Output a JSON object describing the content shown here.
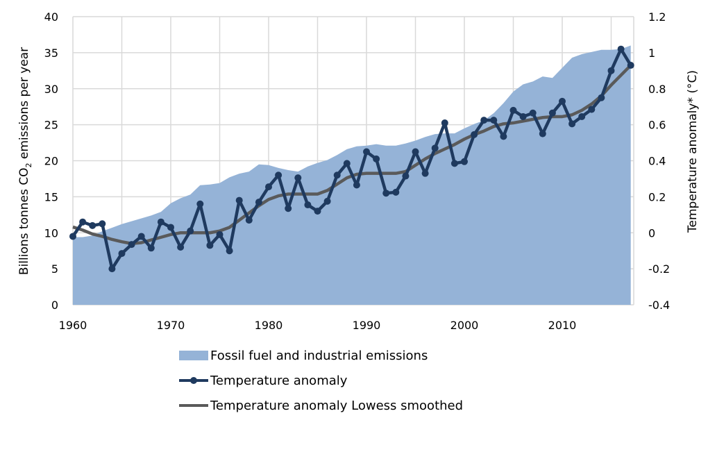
{
  "chart_data": {
    "type": "area+line",
    "title": "",
    "xlabel": "",
    "ylabel": "Billions tonnes CO₂ emissions per year",
    "ylabel_parts": {
      "pre": "Billions tonnes CO",
      "sub": "2",
      "post": " emissions per year"
    },
    "y2label": "Temperature anomaly* (°C)",
    "xlim": [
      1960,
      2017
    ],
    "ylim": [
      0,
      40
    ],
    "y2lim": [
      -0.4,
      1.2
    ],
    "grid": true,
    "legend_position": "bottom",
    "x_ticks": [
      "1960",
      "1970",
      "1980",
      "1990",
      "2000",
      "2010"
    ],
    "x_tick_values": [
      1960,
      1970,
      1980,
      1990,
      2000,
      2010
    ],
    "y_ticks": [
      "0",
      "5",
      "10",
      "15",
      "20",
      "25",
      "30",
      "35",
      "40"
    ],
    "y_tick_values": [
      0,
      5,
      10,
      15,
      20,
      25,
      30,
      35,
      40
    ],
    "y2_ticks": [
      "-0.4",
      "-0.2",
      "0",
      "0.2",
      "0.4",
      "0.6",
      "0.8",
      "1",
      "1.2"
    ],
    "y2_tick_values": [
      -0.4,
      -0.2,
      0,
      0.2,
      0.4,
      0.6,
      0.8,
      1.0,
      1.2
    ],
    "x": [
      1960,
      1961,
      1962,
      1963,
      1964,
      1965,
      1966,
      1967,
      1968,
      1969,
      1970,
      1971,
      1972,
      1973,
      1974,
      1975,
      1976,
      1977,
      1978,
      1979,
      1980,
      1981,
      1982,
      1983,
      1984,
      1985,
      1986,
      1987,
      1988,
      1989,
      1990,
      1991,
      1992,
      1993,
      1994,
      1995,
      1996,
      1997,
      1998,
      1999,
      2000,
      2001,
      2002,
      2003,
      2004,
      2005,
      2006,
      2007,
      2008,
      2009,
      2010,
      2011,
      2012,
      2013,
      2014,
      2015,
      2016,
      2017
    ],
    "series": [
      {
        "name": "Fossil fuel and industrial emissions",
        "kind": "area",
        "axis": "left",
        "color": "#95b3d7",
        "values": [
          9.4,
          9.4,
          9.6,
          10.2,
          10.7,
          11.2,
          11.6,
          12.0,
          12.4,
          12.9,
          14.1,
          14.8,
          15.3,
          16.6,
          16.7,
          16.9,
          17.7,
          18.2,
          18.5,
          19.5,
          19.4,
          19.0,
          18.7,
          18.5,
          19.2,
          19.7,
          20.1,
          20.8,
          21.6,
          22.0,
          22.1,
          22.3,
          22.1,
          22.1,
          22.4,
          22.8,
          23.3,
          23.7,
          23.8,
          23.8,
          24.5,
          25.1,
          25.6,
          26.6,
          28.0,
          29.6,
          30.6,
          31.0,
          31.7,
          31.5,
          32.9,
          34.3,
          34.8,
          35.1,
          35.4,
          35.4,
          35.5,
          36.0
        ]
      },
      {
        "name": "Temperature anomaly",
        "kind": "line-markers",
        "axis": "right",
        "color": "#1f3a5f",
        "values": [
          -0.02,
          0.06,
          0.04,
          0.05,
          -0.2,
          -0.115,
          -0.065,
          -0.02,
          -0.085,
          0.06,
          0.03,
          -0.08,
          0.01,
          0.16,
          -0.07,
          -0.01,
          -0.1,
          0.18,
          0.07,
          0.17,
          0.255,
          0.32,
          0.135,
          0.305,
          0.155,
          0.12,
          0.175,
          0.32,
          0.385,
          0.265,
          0.45,
          0.41,
          0.22,
          0.225,
          0.315,
          0.45,
          0.33,
          0.47,
          0.61,
          0.385,
          0.395,
          0.545,
          0.625,
          0.625,
          0.535,
          0.68,
          0.645,
          0.665,
          0.55,
          0.665,
          0.73,
          0.605,
          0.645,
          0.685,
          0.75,
          0.9,
          1.02,
          0.93
        ]
      },
      {
        "name": "Temperature anomaly Lowess smoothed",
        "kind": "line",
        "axis": "right",
        "color": "#5a5a5a",
        "values": [
          0.032,
          0.015,
          -0.007,
          -0.02,
          -0.037,
          -0.05,
          -0.06,
          -0.055,
          -0.04,
          -0.025,
          -0.01,
          0.0,
          0.0,
          0.0,
          0.0,
          0.01,
          0.03,
          0.07,
          0.11,
          0.15,
          0.185,
          0.205,
          0.215,
          0.215,
          0.215,
          0.215,
          0.235,
          0.27,
          0.305,
          0.325,
          0.33,
          0.33,
          0.33,
          0.33,
          0.34,
          0.375,
          0.41,
          0.44,
          0.465,
          0.49,
          0.52,
          0.545,
          0.565,
          0.59,
          0.605,
          0.61,
          0.62,
          0.63,
          0.64,
          0.645,
          0.645,
          0.655,
          0.68,
          0.715,
          0.76,
          0.82,
          0.875,
          0.93
        ]
      }
    ]
  },
  "legend": {
    "items": [
      {
        "label": "Fossil fuel and industrial emissions",
        "icon": "area-swatch"
      },
      {
        "label": "Temperature anomaly",
        "icon": "line-with-marker"
      },
      {
        "label": "Temperature anomaly Lowess smoothed",
        "icon": "line"
      }
    ]
  }
}
